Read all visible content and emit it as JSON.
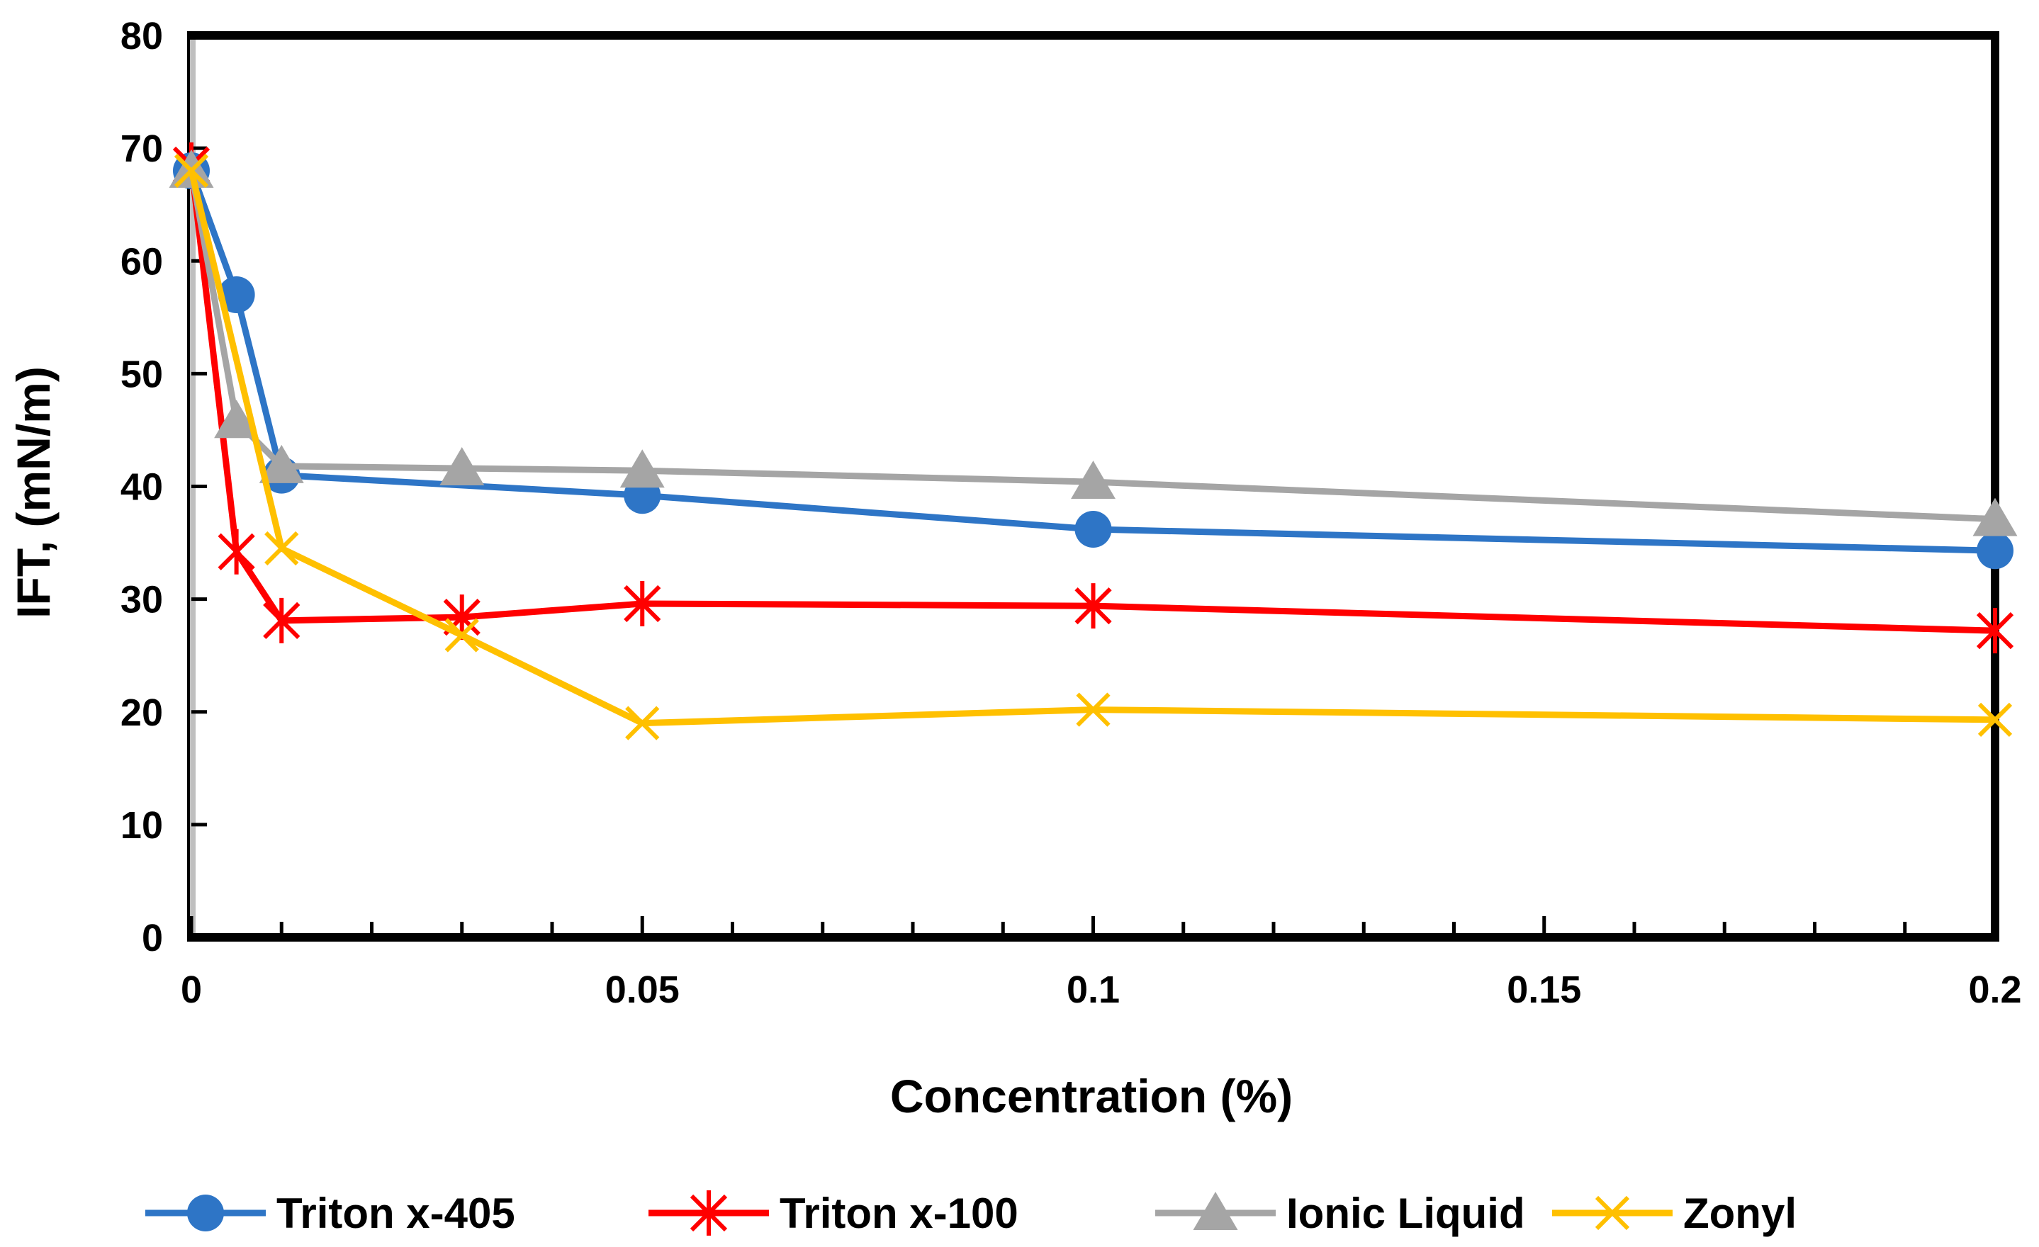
{
  "chart_data": {
    "type": "line",
    "title": "",
    "xlabel": "Concentration (%)",
    "ylabel": "IFT, (mN/m)",
    "xlim": [
      0,
      0.2
    ],
    "ylim": [
      0,
      80
    ],
    "x_ticks": [
      "0",
      "0.05",
      "0.1",
      "0.15",
      "0.2"
    ],
    "y_ticks": [
      "0",
      "10",
      "20",
      "30",
      "40",
      "50",
      "60",
      "70",
      "80"
    ],
    "grid": false,
    "legend_position": "bottom",
    "series": [
      {
        "name": "Triton x-405",
        "color": "#2e75c6",
        "marker": "circle",
        "points": [
          [
            0,
            68
          ],
          [
            0.005,
            57
          ],
          [
            0.01,
            41
          ],
          [
            0.05,
            39.2
          ],
          [
            0.1,
            36.2
          ],
          [
            0.2,
            34.3
          ]
        ]
      },
      {
        "name": "Triton x-100",
        "color": "#ff0000",
        "marker": "star",
        "points": [
          [
            0,
            68.5
          ],
          [
            0.005,
            34.2
          ],
          [
            0.01,
            28.1
          ],
          [
            0.03,
            28.4
          ],
          [
            0.05,
            29.6
          ],
          [
            0.1,
            29.4
          ],
          [
            0.2,
            27.2
          ]
        ]
      },
      {
        "name": "Ionic Liquid",
        "color": "#a5a5a5",
        "marker": "triangle",
        "points": [
          [
            0,
            68
          ],
          [
            0.005,
            45.8
          ],
          [
            0.01,
            41.8
          ],
          [
            0.03,
            41.6
          ],
          [
            0.05,
            41.4
          ],
          [
            0.1,
            40.4
          ],
          [
            0.2,
            37.1
          ]
        ]
      },
      {
        "name": "Zonyl",
        "color": "#ffc000",
        "marker": "x",
        "points": [
          [
            0,
            68
          ],
          [
            0.01,
            34.5
          ],
          [
            0.03,
            26.8
          ],
          [
            0.05,
            19
          ],
          [
            0.1,
            20.2
          ],
          [
            0.2,
            19.3
          ]
        ]
      }
    ]
  }
}
